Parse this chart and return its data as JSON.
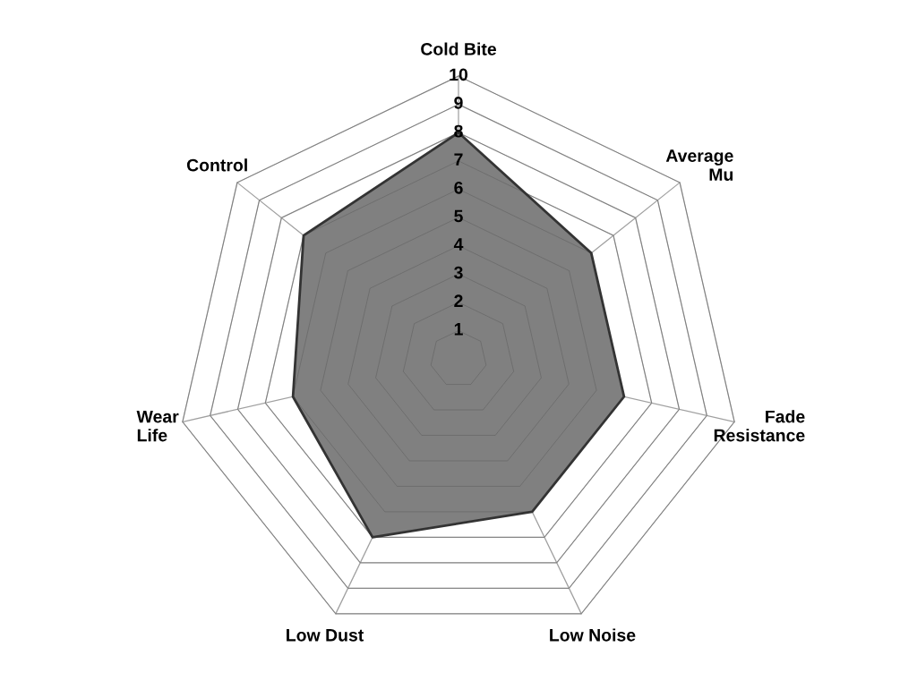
{
  "chart_data": {
    "type": "radar",
    "categories": [
      "Cold Bite",
      "Average\nMu",
      "Fade\nResistance",
      "Low Noise",
      "Low Dust",
      "Wear\nLife",
      "Control"
    ],
    "series": [
      {
        "color": "#808080",
        "values": [
          8,
          6,
          6,
          6,
          7,
          6,
          7
        ]
      }
    ],
    "ylim": [
      0,
      10
    ],
    "yticks": [
      1,
      2,
      3,
      4,
      5,
      6,
      7,
      8,
      9,
      10
    ],
    "grid": true
  }
}
